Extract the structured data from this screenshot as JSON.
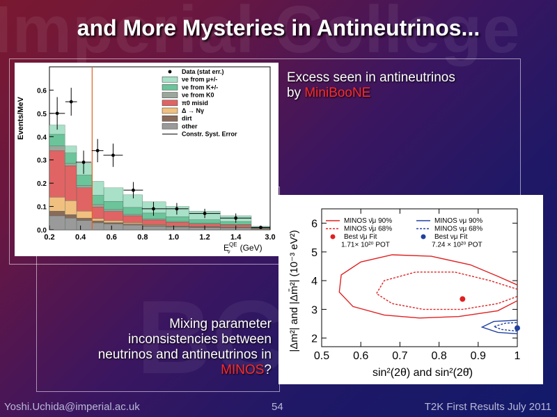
{
  "slide": {
    "watermark": "Imperial College",
    "watermark_bottom": "BCT",
    "title": "and More Mysteries in Antineutrinos...",
    "excess_line1": "Excess seen in antineutrinos",
    "excess_line2_prefix": "by ",
    "excess_highlight": "MiniBooNE",
    "mixing_line1": "Mixing parameter",
    "mixing_line2": "inconsistencies between",
    "mixing_line3": "neutrinos and antineutrinos in",
    "mixing_highlight": "MINOS",
    "mixing_suffix": "?",
    "footer_left": "Yoshi.Uchida@imperial.ac.uk",
    "footer_center": "54",
    "footer_right": "T2K First Results July 2011"
  },
  "chart_data": [
    {
      "type": "bar",
      "ylabel": "Events/MeV",
      "xlabel_main": "E",
      "xlabel_sup": "QE",
      "xlabel_sub": "ν",
      "xlabel_unit": "(GeV)",
      "xlim": [
        0.2,
        3.0
      ],
      "ylim": [
        0.0,
        0.7
      ],
      "xticks": [
        "0.2",
        "0.4",
        "0.6",
        "0.8",
        "1.0",
        "1.2",
        "1.4",
        "3.0"
      ],
      "yticks": [
        "0.0",
        "0.1",
        "0.2",
        "0.3",
        "0.4",
        "0.5",
        "0.6"
      ],
      "bin_edges": [
        0.2,
        0.3,
        0.375,
        0.475,
        0.55,
        0.675,
        0.8,
        0.95,
        1.1,
        1.3,
        1.5,
        3.0
      ],
      "threshold_line_x": 0.475,
      "legend_position": "top-right",
      "legend": [
        {
          "label": "Data (stat err.)",
          "color": "#000000",
          "kind": "point"
        },
        {
          "label": "νe from μ+/-",
          "color": "#a8e0c8",
          "kind": "fill"
        },
        {
          "label": "νe from K+/-",
          "color": "#6cc49a",
          "kind": "fill"
        },
        {
          "label": "νe from K0",
          "color": "#9aa79a",
          "kind": "fill"
        },
        {
          "label": "π0 misid",
          "color": "#e06464",
          "kind": "fill"
        },
        {
          "label": "Δ → Nγ",
          "color": "#f0c080",
          "kind": "fill"
        },
        {
          "label": "dirt",
          "color": "#8a6a5a",
          "kind": "fill"
        },
        {
          "label": "other",
          "color": "#9a9a9a",
          "kind": "fill"
        },
        {
          "label": "Constr. Syst. Error",
          "color": "#000000",
          "kind": "line"
        }
      ],
      "stack_components": [
        {
          "name": "other",
          "color": "#9a9a9a",
          "values": [
            0.06,
            0.05,
            0.04,
            0.03,
            0.025,
            0.02,
            0.015,
            0.012,
            0.01,
            0.008,
            0.003
          ]
        },
        {
          "name": "dirt",
          "color": "#8a6a5a",
          "values": [
            0.02,
            0.015,
            0.01,
            0.008,
            0.006,
            0.005,
            0.004,
            0.003,
            0.002,
            0.002,
            0.001
          ]
        },
        {
          "name": "Δ → Nγ",
          "color": "#f0c080",
          "values": [
            0.06,
            0.06,
            0.03,
            0.01,
            0.008,
            0.005,
            0.003,
            0.002,
            0.001,
            0.001,
            0.0
          ]
        },
        {
          "name": "π0 misid",
          "color": "#e06464",
          "values": [
            0.2,
            0.15,
            0.1,
            0.05,
            0.04,
            0.03,
            0.02,
            0.015,
            0.012,
            0.01,
            0.003
          ]
        },
        {
          "name": "νe from K0",
          "color": "#9aa79a",
          "values": [
            0.02,
            0.01,
            0.01,
            0.01,
            0.008,
            0.006,
            0.005,
            0.004,
            0.003,
            0.002,
            0.001
          ]
        },
        {
          "name": "νe from K+/-",
          "color": "#6cc49a",
          "values": [
            0.05,
            0.045,
            0.045,
            0.04,
            0.035,
            0.03,
            0.025,
            0.02,
            0.015,
            0.012,
            0.003
          ]
        },
        {
          "name": "νe from μ+/-",
          "color": "#a8e0c8",
          "values": [
            0.04,
            0.03,
            0.05,
            0.06,
            0.058,
            0.054,
            0.048,
            0.044,
            0.037,
            0.025,
            0.004
          ]
        }
      ],
      "data_points": {
        "x": [
          0.25,
          0.34,
          0.42,
          0.51,
          0.61,
          0.74,
          0.87,
          1.02,
          1.2,
          1.4,
          2.25
        ],
        "y": [
          0.5,
          0.55,
          0.29,
          0.34,
          0.32,
          0.17,
          0.09,
          0.09,
          0.07,
          0.05,
          0.01
        ],
        "yerr": [
          0.07,
          0.06,
          0.05,
          0.05,
          0.05,
          0.035,
          0.03,
          0.025,
          0.02,
          0.02,
          0.005
        ]
      }
    },
    {
      "type": "contour",
      "xlabel": "sin²(2θ) and sin²(2θ̄)",
      "ylabel": "|Δm²| and |Δm̄²| (10⁻³ eV²)",
      "xlim": [
        0.5,
        1.0
      ],
      "ylim": [
        1.7,
        6.5
      ],
      "xticks": [
        "0.5",
        "0.6",
        "0.7",
        "0.8",
        "0.9",
        "1"
      ],
      "yticks": [
        "2",
        "3",
        "4",
        "5",
        "6"
      ],
      "legend_position": "top",
      "legend": [
        {
          "label": "MINOS ν̄μ 90%",
          "color": "#e02020",
          "style": "solid"
        },
        {
          "label": "MINOS ν̄μ 68%",
          "color": "#e02020",
          "style": "dashed"
        },
        {
          "label": "Best ν̄μ Fit",
          "color": "#e02020",
          "style": "dot"
        },
        {
          "label": "1.71× 10²⁰ POT",
          "color": "#000000",
          "style": "text"
        },
        {
          "label": "MINOS νμ 90%",
          "color": "#2040a0",
          "style": "solid"
        },
        {
          "label": "MINOS νμ 68%",
          "color": "#2040a0",
          "style": "dashed"
        },
        {
          "label": "Best νμ Fit",
          "color": "#2040a0",
          "style": "dot"
        },
        {
          "label": "7.24 × 10²⁰ POT",
          "color": "#000000",
          "style": "text"
        }
      ],
      "best_fit_antineutrino": {
        "x": 0.86,
        "y": 3.36
      },
      "best_fit_neutrino": {
        "x": 1.0,
        "y": 2.35
      },
      "contours": [
        {
          "name": "MINOS ν̄μ 90%",
          "color": "#e02020",
          "style": "solid",
          "points": [
            [
              1.0,
              3.3
            ],
            [
              0.95,
              2.95
            ],
            [
              0.85,
              2.75
            ],
            [
              0.75,
              2.7
            ],
            [
              0.66,
              2.8
            ],
            [
              0.58,
              3.1
            ],
            [
              0.545,
              3.6
            ],
            [
              0.55,
              4.2
            ],
            [
              0.6,
              4.65
            ],
            [
              0.68,
              4.9
            ],
            [
              0.78,
              4.85
            ],
            [
              0.88,
              4.55
            ],
            [
              0.95,
              4.15
            ],
            [
              1.0,
              3.85
            ]
          ]
        },
        {
          "name": "MINOS ν̄μ 68%",
          "color": "#e02020",
          "style": "dashed",
          "points": [
            [
              1.0,
              3.45
            ],
            [
              0.95,
              3.2
            ],
            [
              0.86,
              3.0
            ],
            [
              0.76,
              3.0
            ],
            [
              0.68,
              3.2
            ],
            [
              0.64,
              3.55
            ],
            [
              0.66,
              4.0
            ],
            [
              0.74,
              4.3
            ],
            [
              0.84,
              4.3
            ],
            [
              0.93,
              4.0
            ],
            [
              1.0,
              3.7
            ]
          ]
        },
        {
          "name": "MINOS νμ 90%",
          "color": "#2040a0",
          "style": "solid",
          "points": [
            [
              1.0,
              2.15
            ],
            [
              0.95,
              2.2
            ],
            [
              0.91,
              2.38
            ],
            [
              0.94,
              2.58
            ],
            [
              1.0,
              2.62
            ]
          ]
        },
        {
          "name": "MINOS νμ 68%",
          "color": "#2040a0",
          "style": "dashed",
          "points": [
            [
              1.0,
              2.24
            ],
            [
              0.96,
              2.3
            ],
            [
              0.94,
              2.4
            ],
            [
              0.97,
              2.52
            ],
            [
              1.0,
              2.54
            ]
          ]
        }
      ]
    }
  ]
}
